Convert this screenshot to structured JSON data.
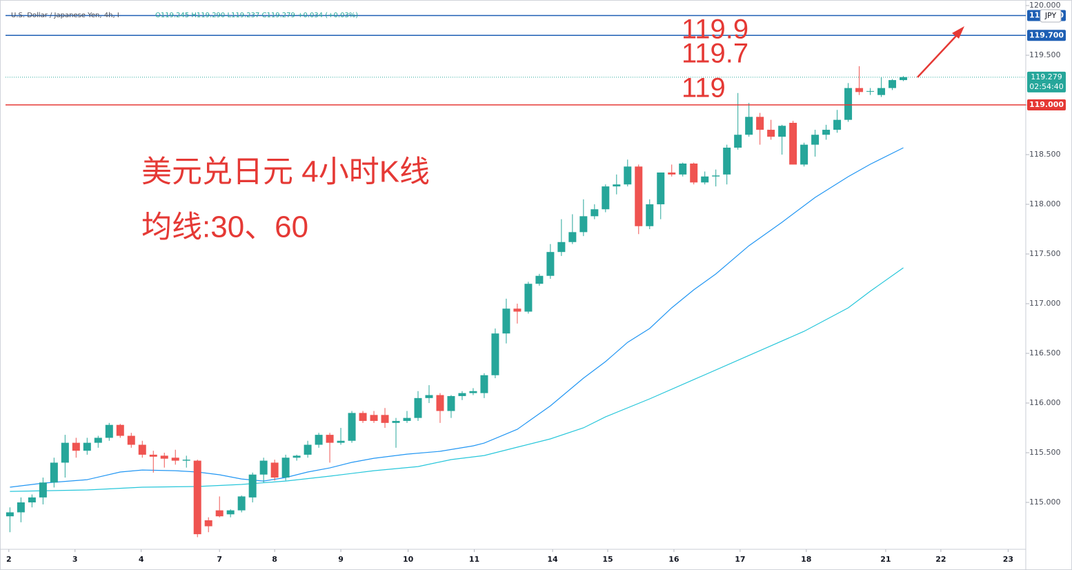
{
  "chart_data": {
    "type": "candlestick",
    "title": "U.S. Dollar / Japanese Yen, 4h, I",
    "ohlc_legend": "O119.245 H119.290 L119.237 C119.279 +0.034 (+0.03%)",
    "currency": "JPY",
    "up_color": "#26a69a",
    "down_color": "#ef5350",
    "open": [
      114.86,
      114.9,
      115.0,
      115.05,
      115.2,
      115.4,
      115.6,
      115.52,
      115.6,
      115.65,
      115.78,
      115.67,
      115.58,
      115.48,
      115.47,
      115.45,
      115.42,
      115.42,
      114.82,
      114.92,
      114.88,
      114.92,
      115.05,
      115.28,
      115.4,
      115.25,
      115.45,
      115.48,
      115.58,
      115.68,
      115.6,
      115.62,
      115.9,
      115.88,
      115.88,
      115.8,
      115.82,
      115.85,
      116.05,
      116.08,
      115.92,
      116.07,
      116.1,
      116.1,
      116.28,
      116.7,
      116.95,
      116.92,
      117.2,
      117.28,
      117.52,
      117.62,
      117.72,
      117.88,
      117.95,
      118.18,
      118.2,
      118.38,
      117.78,
      118.0,
      118.32,
      118.3,
      118.41,
      118.22,
      118.28,
      118.3,
      118.57,
      118.7,
      118.88,
      118.75,
      118.68,
      118.82,
      118.4,
      118.6,
      118.7,
      118.75,
      118.85,
      119.17,
      119.14,
      119.1,
      119.17,
      119.25
    ],
    "high": [
      114.95,
      115.05,
      115.08,
      115.25,
      115.45,
      115.68,
      115.65,
      115.65,
      115.67,
      115.8,
      115.79,
      115.7,
      115.62,
      115.52,
      115.5,
      115.53,
      115.47,
      115.43,
      114.85,
      115.06,
      114.93,
      115.07,
      115.3,
      115.45,
      115.43,
      115.48,
      115.48,
      115.62,
      115.7,
      115.7,
      115.75,
      115.92,
      115.92,
      115.92,
      115.95,
      115.85,
      115.92,
      116.12,
      116.18,
      116.1,
      116.08,
      116.12,
      116.15,
      116.3,
      116.75,
      117.05,
      117.0,
      117.22,
      117.3,
      117.6,
      117.85,
      117.9,
      118.05,
      118.0,
      118.2,
      118.3,
      118.45,
      118.4,
      118.05,
      118.32,
      118.4,
      118.42,
      118.42,
      118.33,
      118.35,
      118.6,
      119.12,
      119.02,
      118.92,
      118.85,
      118.8,
      118.84,
      118.62,
      118.75,
      118.8,
      118.95,
      119.22,
      119.39,
      119.17,
      119.28,
      119.26,
      119.29
    ],
    "low": [
      114.7,
      114.8,
      114.95,
      114.98,
      115.15,
      115.25,
      115.45,
      115.48,
      115.55,
      115.62,
      115.65,
      115.55,
      115.45,
      115.3,
      115.35,
      115.38,
      115.35,
      114.65,
      114.7,
      114.85,
      114.85,
      114.9,
      115.0,
      115.2,
      115.22,
      115.22,
      115.42,
      115.45,
      115.55,
      115.4,
      115.58,
      115.6,
      115.8,
      115.8,
      115.75,
      115.55,
      115.8,
      115.82,
      116.0,
      115.8,
      115.85,
      116.03,
      116.08,
      116.05,
      116.25,
      116.6,
      116.8,
      116.9,
      117.18,
      117.25,
      117.48,
      117.6,
      117.68,
      117.85,
      117.92,
      118.1,
      118.18,
      117.7,
      117.75,
      117.85,
      118.28,
      118.28,
      118.2,
      118.2,
      118.18,
      118.2,
      118.55,
      118.68,
      118.6,
      118.65,
      118.5,
      118.4,
      118.38,
      118.48,
      118.65,
      118.72,
      118.83,
      119.1,
      119.1,
      119.08,
      119.15,
      119.24
    ],
    "close": [
      114.9,
      115.0,
      115.05,
      115.2,
      115.4,
      115.6,
      115.52,
      115.6,
      115.65,
      115.78,
      115.67,
      115.58,
      115.48,
      115.46,
      115.44,
      115.42,
      115.43,
      114.68,
      114.76,
      114.86,
      114.92,
      115.06,
      115.28,
      115.42,
      115.25,
      115.45,
      115.47,
      115.58,
      115.68,
      115.6,
      115.62,
      115.9,
      115.82,
      115.82,
      115.8,
      115.82,
      115.85,
      116.05,
      116.08,
      115.92,
      116.07,
      116.1,
      116.12,
      116.28,
      116.7,
      116.95,
      116.92,
      117.2,
      117.28,
      117.52,
      117.62,
      117.72,
      117.88,
      117.95,
      118.18,
      118.2,
      118.38,
      117.78,
      118.0,
      118.32,
      118.3,
      118.41,
      118.22,
      118.28,
      118.29,
      118.57,
      118.7,
      118.88,
      118.75,
      118.68,
      118.79,
      118.4,
      118.6,
      118.7,
      118.75,
      118.85,
      119.17,
      119.13,
      119.14,
      119.17,
      119.25,
      119.28
    ],
    "series": [
      {
        "color": "#2196f3",
        "x": [
          0,
          3,
          7,
          10,
          12,
          15,
          17,
          19,
          21,
          23,
          25,
          27,
          29,
          31,
          33,
          36,
          39,
          42,
          43,
          46,
          49,
          52,
          54,
          56,
          58,
          60,
          62,
          64,
          67,
          70,
          73,
          76,
          78,
          81
        ],
        "values": [
          115.153,
          115.194,
          115.229,
          115.306,
          115.326,
          115.319,
          115.306,
          115.278,
          115.236,
          115.215,
          115.25,
          115.306,
          115.347,
          115.403,
          115.444,
          115.486,
          115.514,
          115.569,
          115.597,
          115.736,
          115.972,
          116.25,
          116.417,
          116.611,
          116.75,
          116.958,
          117.139,
          117.299,
          117.583,
          117.819,
          118.069,
          118.278,
          118.403,
          118.569
        ]
      },
      {
        "color": "#26c6da",
        "x": [
          0,
          7,
          12,
          17,
          21,
          25,
          29,
          33,
          37,
          40,
          43,
          46,
          49,
          52,
          54,
          58,
          62,
          67,
          72,
          76,
          78,
          81
        ],
        "values": [
          115.111,
          115.125,
          115.153,
          115.16,
          115.181,
          115.215,
          115.264,
          115.319,
          115.361,
          115.431,
          115.472,
          115.556,
          115.639,
          115.75,
          115.861,
          116.042,
          116.236,
          116.479,
          116.722,
          116.958,
          117.125,
          117.361
        ]
      }
    ],
    "xlim": [
      -0.4,
      92.1
    ],
    "xticks": [
      {
        "value": -0.1,
        "label": "2"
      },
      {
        "value": 5.9,
        "label": "3"
      },
      {
        "value": 11.9,
        "label": "4"
      },
      {
        "value": 19,
        "label": "7"
      },
      {
        "value": 24,
        "label": "8"
      },
      {
        "value": 30,
        "label": "9"
      },
      {
        "value": 36.1,
        "label": "10"
      },
      {
        "value": 42.1,
        "label": "11"
      },
      {
        "value": 49.2,
        "label": "14"
      },
      {
        "value": 54.2,
        "label": "15"
      },
      {
        "value": 60.2,
        "label": "16"
      },
      {
        "value": 66.2,
        "label": "17"
      },
      {
        "value": 72.2,
        "label": "18"
      },
      {
        "value": 79.4,
        "label": "21"
      },
      {
        "value": 84.4,
        "label": "22"
      },
      {
        "value": 90.5,
        "label": "23"
      }
    ],
    "ylim": [
      114.528,
      120.056
    ],
    "yticks": [
      {
        "value": 115,
        "label": "115.000"
      },
      {
        "value": 115.5,
        "label": "115.500"
      },
      {
        "value": 116,
        "label": "116.000"
      },
      {
        "value": 116.5,
        "label": "116.500"
      },
      {
        "value": 117,
        "label": "117.000"
      },
      {
        "value": 117.5,
        "label": "117.500"
      },
      {
        "value": 118,
        "label": "118.000"
      },
      {
        "value": 118.5,
        "label": "118.500"
      },
      {
        "value": 119,
        "label": "119.000"
      },
      {
        "value": 119.5,
        "label": "119.500"
      },
      {
        "value": 120,
        "label": "120.000"
      }
    ],
    "hlines": [
      {
        "value": 119.9,
        "label": "119.900",
        "color": "#1e5fb4"
      },
      {
        "value": 119.7,
        "label": "119.700",
        "color": "#1e5fb4"
      },
      {
        "value": 119,
        "label": "119.000",
        "color": "#e53935"
      }
    ],
    "last_price": {
      "value": 119.279,
      "label": "119.279",
      "countdown": "02:54:40",
      "color": "#26a69a"
    },
    "annotations": [
      "119.9",
      "119.7",
      "119",
      "美元兑日元 4小时K线",
      "均线:30、60"
    ]
  }
}
